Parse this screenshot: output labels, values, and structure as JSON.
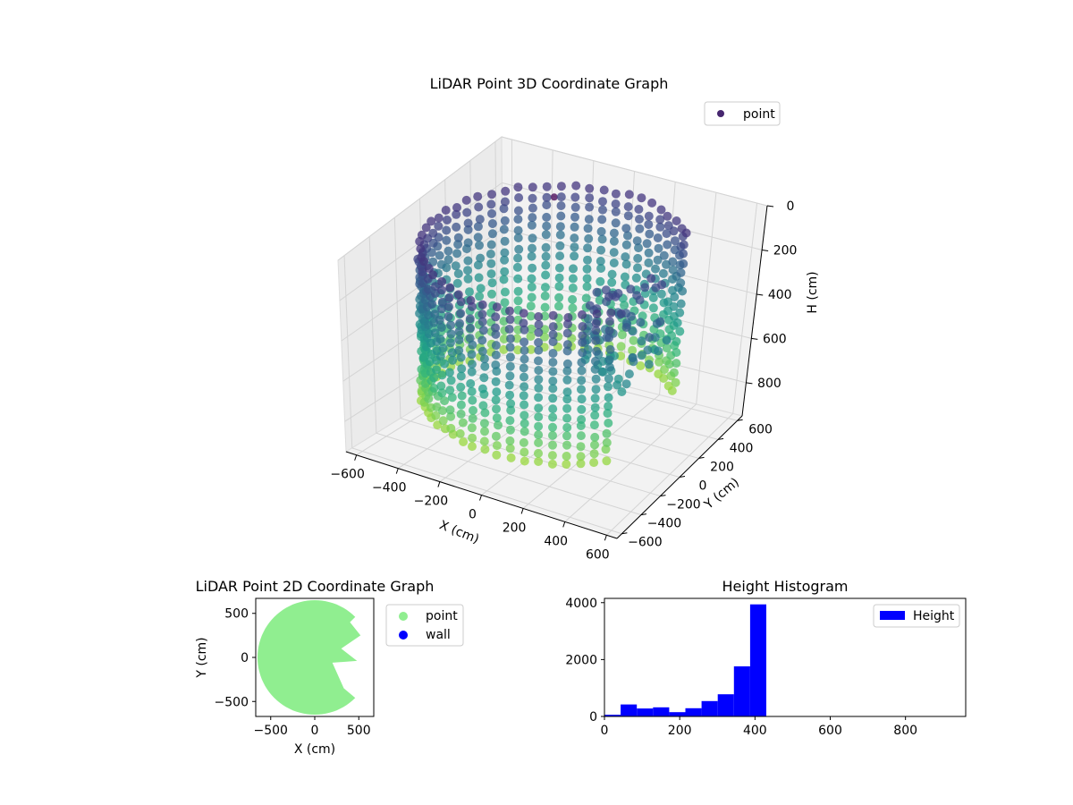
{
  "chart_data": [
    {
      "type": "scatter",
      "title": "LiDAR Point 3D Coordinate Graph",
      "xlabel": "X (cm)",
      "ylabel": "Y (cm)",
      "zlabel": "H (cm)",
      "xlim": [
        -650,
        650
      ],
      "ylim": [
        -650,
        650
      ],
      "zlim": [
        950,
        0
      ],
      "x_ticks": [
        "−600",
        "−400",
        "−200",
        "0",
        "200",
        "400",
        "600"
      ],
      "y_ticks": [
        "−600",
        "−400",
        "−200",
        "0",
        "200",
        "400",
        "600"
      ],
      "z_ticks": [
        "0",
        "200",
        "400",
        "600",
        "800"
      ],
      "colormap": "viridis",
      "legend": {
        "position": "top-right",
        "entries": [
          {
            "label": "point",
            "color": "#46266f"
          }
        ]
      },
      "series": [
        {
          "name": "point",
          "description_shape": "cylindrical wall of radius ~650 cm spanning heights ~50-900, with an angular gap (pie-slice opening) toward +X between about -30° and +40°"
        }
      ],
      "grid": true
    },
    {
      "type": "scatter",
      "title": "LiDAR Point 2D Coordinate Graph",
      "xlabel": "X (cm)",
      "ylabel": "Y (cm)",
      "xlim": [
        -670,
        670
      ],
      "ylim": [
        -670,
        670
      ],
      "x_ticks": [
        "−500",
        "0",
        "500"
      ],
      "y_ticks": [
        "−500",
        "0",
        "500"
      ],
      "legend": {
        "position": "outside-right",
        "entries": [
          {
            "label": "point",
            "color": "#90ee90"
          },
          {
            "label": "wall",
            "color": "#0000ff"
          }
        ]
      },
      "series": [
        {
          "name": "point",
          "color": "#90ee90"
        },
        {
          "name": "wall",
          "color": "#0000ff"
        }
      ]
    },
    {
      "type": "bar",
      "title": "Height Histogram",
      "xlim": [
        0,
        960
      ],
      "ylim": [
        0,
        4150
      ],
      "x_ticks": [
        "0",
        "200",
        "400",
        "600",
        "800"
      ],
      "y_ticks": [
        "0",
        "2000",
        "4000"
      ],
      "bin_width": 43,
      "bins_left": [
        0,
        43,
        86,
        129,
        172,
        215,
        258,
        301,
        344,
        387
      ],
      "values": [
        60,
        420,
        280,
        320,
        150,
        290,
        540,
        780,
        1760,
        3940
      ],
      "color": "#0000ff",
      "legend": {
        "position": "top-right",
        "entries": [
          {
            "label": "Height",
            "color": "#0000ff"
          }
        ]
      }
    }
  ]
}
